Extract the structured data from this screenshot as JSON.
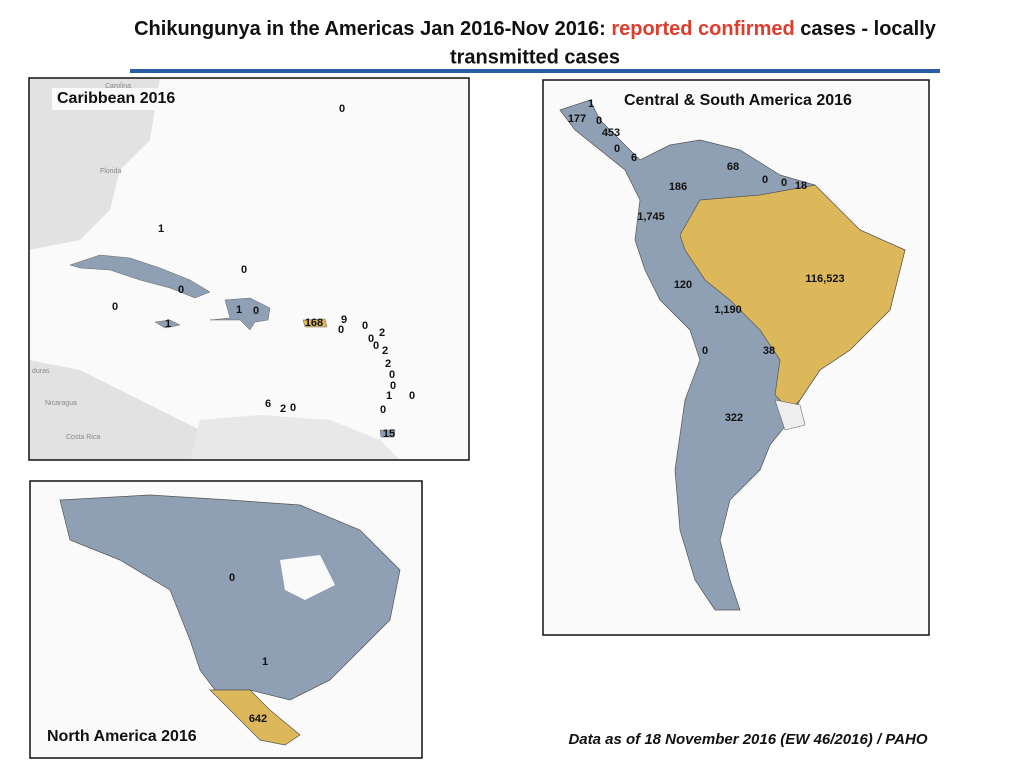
{
  "header": {
    "title_start": "Chikungunya in the Americas Jan 2016-Nov 2016: ",
    "title_highlight": "reported confirmed",
    "title_end": " cases - locally",
    "title_line2": "transmitted cases"
  },
  "panels": [
    {
      "title": "Caribbean 2016",
      "labels": [
        "0",
        "1",
        "0",
        "0",
        "0",
        "1",
        "1",
        "0",
        "168",
        "9",
        "0",
        "0",
        "2",
        "0",
        "0",
        "2",
        "2",
        "0",
        "0",
        "1",
        "0",
        "0",
        "6",
        "2",
        "0",
        "15"
      ],
      "places": [
        "Carolina",
        "Florida",
        "duras",
        "Nicaragua",
        "Costa Rica"
      ]
    },
    {
      "title": "Central & South America  2016",
      "labels": [
        "1",
        "177",
        "0",
        "453",
        "0",
        "6",
        "68",
        "186",
        "0",
        "0",
        "18",
        "1,745",
        "116,523",
        "120",
        "1,190",
        "0",
        "38",
        "322"
      ]
    },
    {
      "title": "North America  2016",
      "labels": [
        "0",
        "1",
        "642"
      ]
    }
  ],
  "footer": "Data as of 18 November  2016 (EW 46/2016) / PAHO"
}
